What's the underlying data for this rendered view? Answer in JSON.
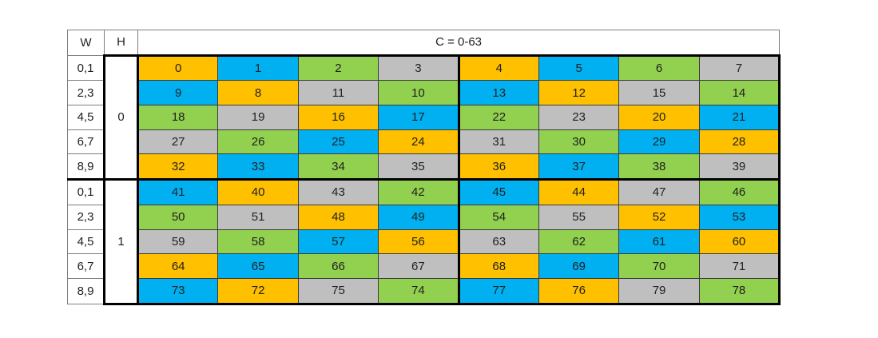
{
  "header": {
    "w_label": "W",
    "h_label": "H",
    "c_label": "C = 0-63"
  },
  "colors": {
    "gold": "#FFC000",
    "blue": "#00B0F0",
    "green": "#92D050",
    "gray": "#BFBFBF"
  },
  "sections": [
    {
      "h_value": "0",
      "rows": [
        {
          "w_label": "0,1",
          "cells": [
            {
              "value": "0",
              "color": "gold"
            },
            {
              "value": "1",
              "color": "blue"
            },
            {
              "value": "2",
              "color": "green"
            },
            {
              "value": "3",
              "color": "gray"
            },
            {
              "value": "4",
              "color": "gold"
            },
            {
              "value": "5",
              "color": "blue"
            },
            {
              "value": "6",
              "color": "green"
            },
            {
              "value": "7",
              "color": "gray"
            }
          ]
        },
        {
          "w_label": "2,3",
          "cells": [
            {
              "value": "9",
              "color": "blue"
            },
            {
              "value": "8",
              "color": "gold"
            },
            {
              "value": "11",
              "color": "gray"
            },
            {
              "value": "10",
              "color": "green"
            },
            {
              "value": "13",
              "color": "blue"
            },
            {
              "value": "12",
              "color": "gold"
            },
            {
              "value": "15",
              "color": "gray"
            },
            {
              "value": "14",
              "color": "green"
            }
          ]
        },
        {
          "w_label": "4,5",
          "cells": [
            {
              "value": "18",
              "color": "green"
            },
            {
              "value": "19",
              "color": "gray"
            },
            {
              "value": "16",
              "color": "gold"
            },
            {
              "value": "17",
              "color": "blue"
            },
            {
              "value": "22",
              "color": "green"
            },
            {
              "value": "23",
              "color": "gray"
            },
            {
              "value": "20",
              "color": "gold"
            },
            {
              "value": "21",
              "color": "blue"
            }
          ]
        },
        {
          "w_label": "6,7",
          "cells": [
            {
              "value": "27",
              "color": "gray"
            },
            {
              "value": "26",
              "color": "green"
            },
            {
              "value": "25",
              "color": "blue"
            },
            {
              "value": "24",
              "color": "gold"
            },
            {
              "value": "31",
              "color": "gray"
            },
            {
              "value": "30",
              "color": "green"
            },
            {
              "value": "29",
              "color": "blue"
            },
            {
              "value": "28",
              "color": "gold"
            }
          ]
        },
        {
          "w_label": "8,9",
          "cells": [
            {
              "value": "32",
              "color": "gold"
            },
            {
              "value": "33",
              "color": "blue"
            },
            {
              "value": "34",
              "color": "green"
            },
            {
              "value": "35",
              "color": "gray"
            },
            {
              "value": "36",
              "color": "gold"
            },
            {
              "value": "37",
              "color": "blue"
            },
            {
              "value": "38",
              "color": "green"
            },
            {
              "value": "39",
              "color": "gray"
            }
          ]
        }
      ]
    },
    {
      "h_value": "1",
      "rows": [
        {
          "w_label": "0,1",
          "cells": [
            {
              "value": "41",
              "color": "blue"
            },
            {
              "value": "40",
              "color": "gold"
            },
            {
              "value": "43",
              "color": "gray"
            },
            {
              "value": "42",
              "color": "green"
            },
            {
              "value": "45",
              "color": "blue"
            },
            {
              "value": "44",
              "color": "gold"
            },
            {
              "value": "47",
              "color": "gray"
            },
            {
              "value": "46",
              "color": "green"
            }
          ]
        },
        {
          "w_label": "2,3",
          "cells": [
            {
              "value": "50",
              "color": "green"
            },
            {
              "value": "51",
              "color": "gray"
            },
            {
              "value": "48",
              "color": "gold"
            },
            {
              "value": "49",
              "color": "blue"
            },
            {
              "value": "54",
              "color": "green"
            },
            {
              "value": "55",
              "color": "gray"
            },
            {
              "value": "52",
              "color": "gold"
            },
            {
              "value": "53",
              "color": "blue"
            }
          ]
        },
        {
          "w_label": "4,5",
          "cells": [
            {
              "value": "59",
              "color": "gray"
            },
            {
              "value": "58",
              "color": "green"
            },
            {
              "value": "57",
              "color": "blue"
            },
            {
              "value": "56",
              "color": "gold"
            },
            {
              "value": "63",
              "color": "gray"
            },
            {
              "value": "62",
              "color": "green"
            },
            {
              "value": "61",
              "color": "blue"
            },
            {
              "value": "60",
              "color": "gold"
            }
          ]
        },
        {
          "w_label": "6,7",
          "cells": [
            {
              "value": "64",
              "color": "gold"
            },
            {
              "value": "65",
              "color": "blue"
            },
            {
              "value": "66",
              "color": "green"
            },
            {
              "value": "67",
              "color": "gray"
            },
            {
              "value": "68",
              "color": "gold"
            },
            {
              "value": "69",
              "color": "blue"
            },
            {
              "value": "70",
              "color": "green"
            },
            {
              "value": "71",
              "color": "gray"
            }
          ]
        },
        {
          "w_label": "8,9",
          "cells": [
            {
              "value": "73",
              "color": "blue"
            },
            {
              "value": "72",
              "color": "gold"
            },
            {
              "value": "75",
              "color": "gray"
            },
            {
              "value": "74",
              "color": "green"
            },
            {
              "value": "77",
              "color": "blue"
            },
            {
              "value": "76",
              "color": "gold"
            },
            {
              "value": "79",
              "color": "gray"
            },
            {
              "value": "78",
              "color": "green"
            }
          ]
        }
      ]
    }
  ]
}
